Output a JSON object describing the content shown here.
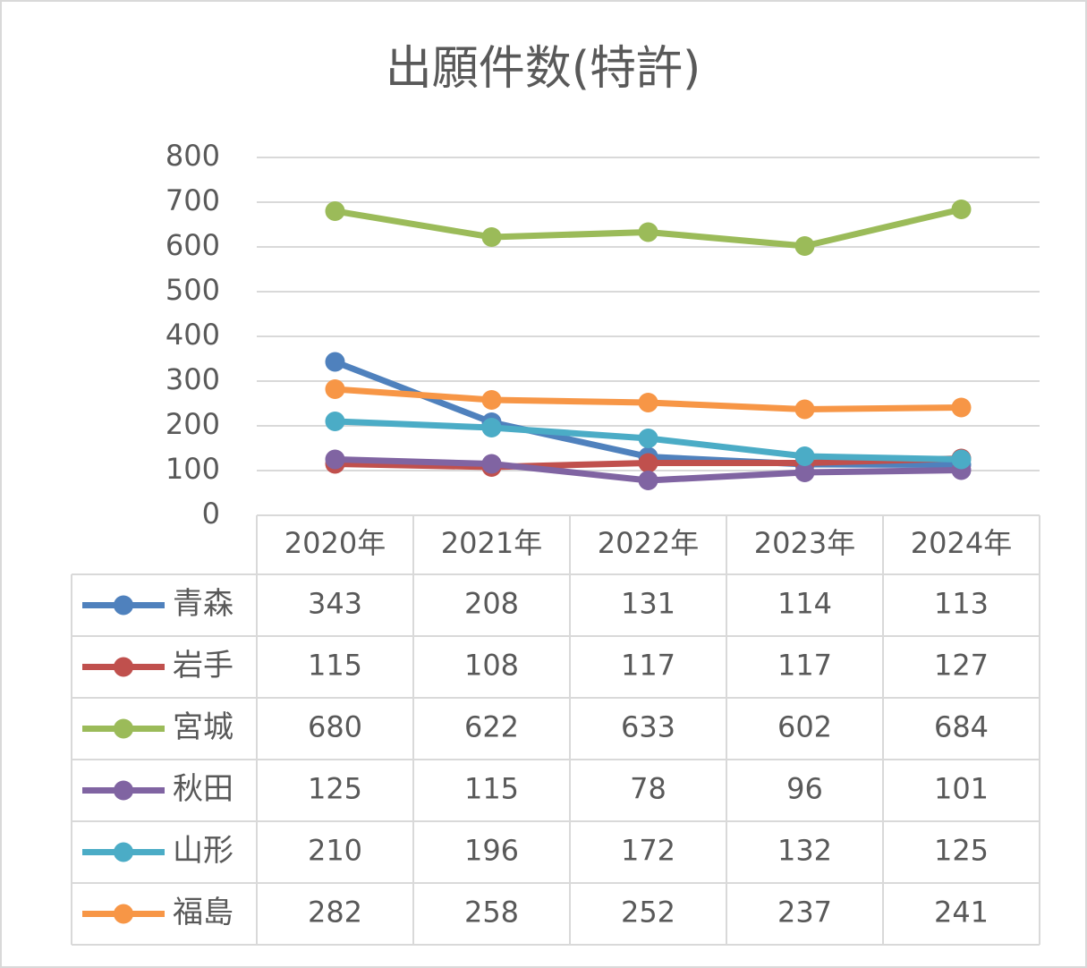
{
  "chart_data": {
    "type": "line",
    "title": "出願件数(特許)",
    "categories": [
      "2020年",
      "2021年",
      "2022年",
      "2023年",
      "2024年"
    ],
    "series": [
      {
        "name": "青森",
        "color": "#4f81bd",
        "values": [
          343,
          208,
          131,
          114,
          113
        ]
      },
      {
        "name": "岩手",
        "color": "#c0504d",
        "values": [
          115,
          108,
          117,
          117,
          127
        ]
      },
      {
        "name": "宮城",
        "color": "#9bbb59",
        "values": [
          680,
          622,
          633,
          602,
          684
        ]
      },
      {
        "name": "秋田",
        "color": "#8064a2",
        "values": [
          125,
          115,
          78,
          96,
          101
        ]
      },
      {
        "name": "山形",
        "color": "#4bacc6",
        "values": [
          210,
          196,
          172,
          132,
          125
        ]
      },
      {
        "name": "福島",
        "color": "#f79646",
        "values": [
          282,
          258,
          252,
          237,
          241
        ]
      }
    ],
    "ylim": [
      0,
      800
    ],
    "yticks": [
      0,
      100,
      200,
      300,
      400,
      500,
      600,
      700,
      800
    ],
    "grid": true
  }
}
